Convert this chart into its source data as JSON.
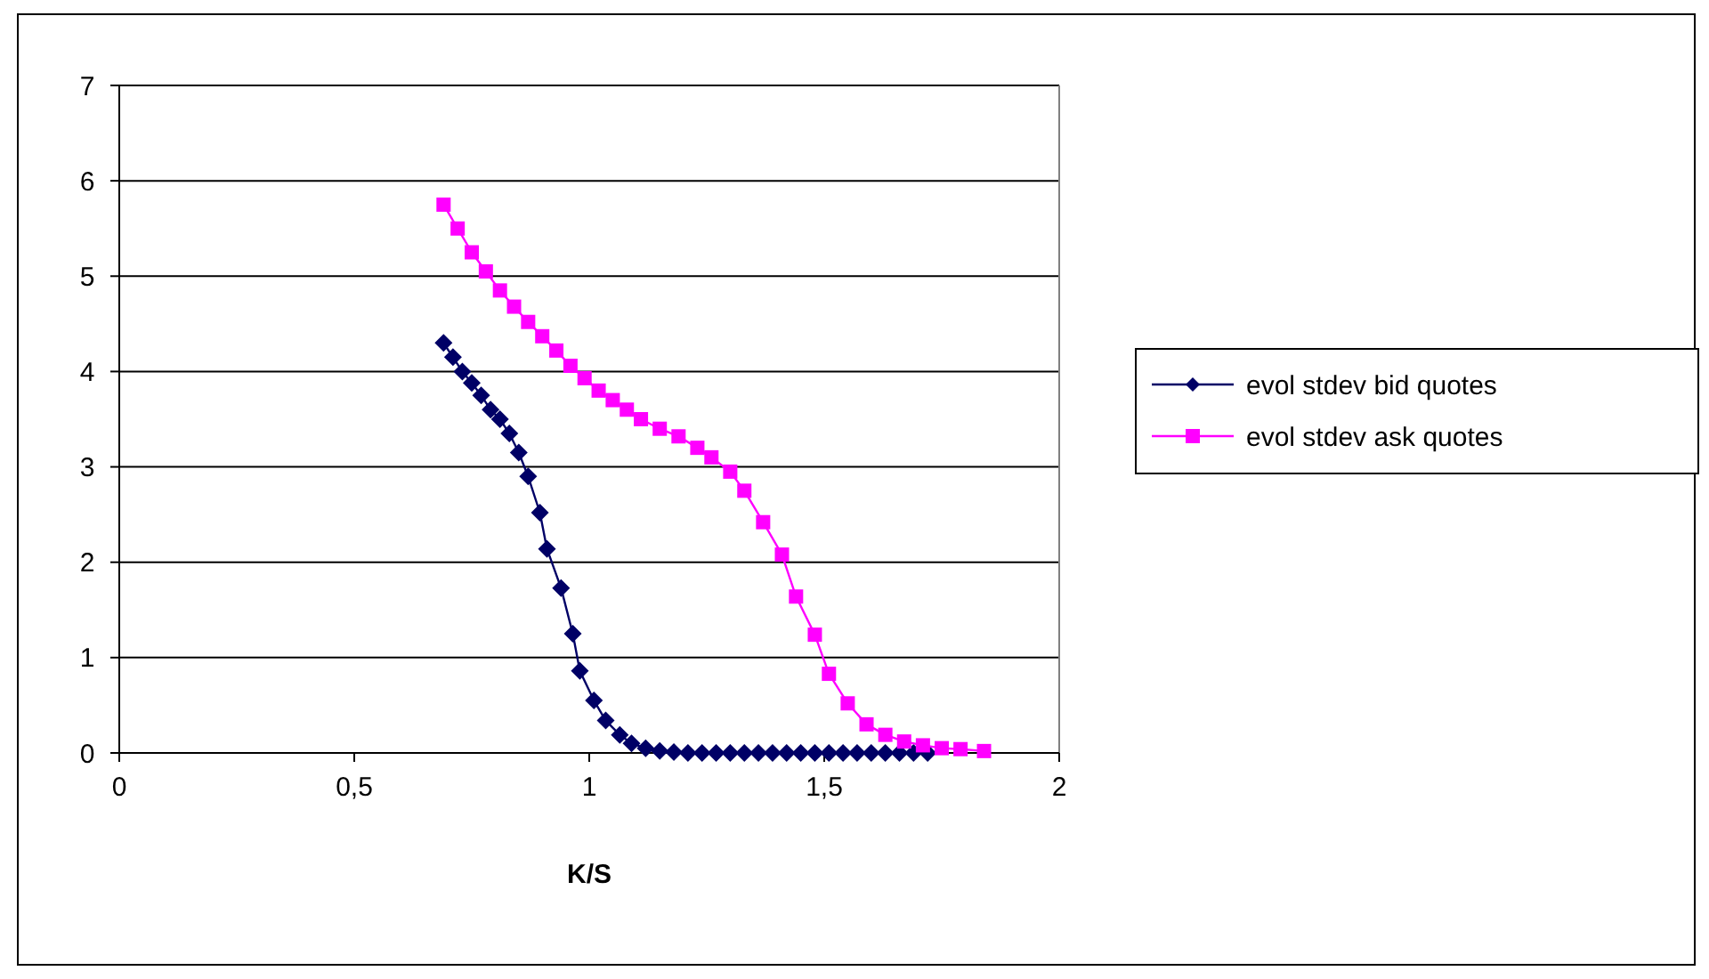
{
  "chart_data": {
    "type": "line",
    "xlabel": "K/S",
    "xlim": [
      0,
      2
    ],
    "xticks": [
      0,
      {
        "value": 0.5,
        "label": "0,5"
      },
      1,
      {
        "value": 1.5,
        "label": "1,5"
      },
      2
    ],
    "ylim": [
      0,
      7
    ],
    "yticks": [
      0,
      1,
      2,
      3,
      4,
      5,
      6,
      7
    ],
    "grid": "y",
    "legend": "right",
    "series": [
      {
        "name": "evol stdev bid quotes",
        "color": "#000066",
        "marker": "diamond",
        "x": [
          0.69,
          0.71,
          0.73,
          0.75,
          0.77,
          0.79,
          0.81,
          0.83,
          0.85,
          0.87,
          0.895,
          0.91,
          0.94,
          0.965,
          0.98,
          1.01,
          1.035,
          1.065,
          1.09,
          1.12,
          1.15,
          1.18,
          1.21,
          1.24,
          1.27,
          1.3,
          1.33,
          1.36,
          1.39,
          1.42,
          1.45,
          1.48,
          1.51,
          1.54,
          1.57,
          1.6,
          1.63,
          1.66,
          1.69,
          1.72
        ],
        "values": [
          4.3,
          4.15,
          4.0,
          3.88,
          3.75,
          3.6,
          3.5,
          3.35,
          3.15,
          2.9,
          2.52,
          2.14,
          1.73,
          1.25,
          0.86,
          0.55,
          0.34,
          0.19,
          0.1,
          0.05,
          0.02,
          0.01,
          0,
          0,
          0,
          0,
          0,
          0,
          0,
          0,
          0,
          0,
          0,
          0,
          0,
          0,
          0,
          0,
          0,
          0
        ]
      },
      {
        "name": "evol stdev ask quotes",
        "color": "#ff00ff",
        "marker": "square",
        "x": [
          0.69,
          0.72,
          0.75,
          0.78,
          0.81,
          0.84,
          0.87,
          0.9,
          0.93,
          0.96,
          0.99,
          1.02,
          1.05,
          1.08,
          1.11,
          1.15,
          1.19,
          1.23,
          1.26,
          1.3,
          1.33,
          1.37,
          1.41,
          1.44,
          1.48,
          1.51,
          1.55,
          1.59,
          1.63,
          1.67,
          1.71,
          1.75,
          1.79,
          1.84
        ],
        "values": [
          5.75,
          5.5,
          5.25,
          5.05,
          4.85,
          4.68,
          4.52,
          4.37,
          4.22,
          4.06,
          3.93,
          3.8,
          3.7,
          3.6,
          3.5,
          3.4,
          3.32,
          3.2,
          3.1,
          2.95,
          2.75,
          2.42,
          2.08,
          1.64,
          1.24,
          0.83,
          0.52,
          0.3,
          0.19,
          0.12,
          0.08,
          0.05,
          0.04,
          0.02
        ]
      }
    ]
  }
}
